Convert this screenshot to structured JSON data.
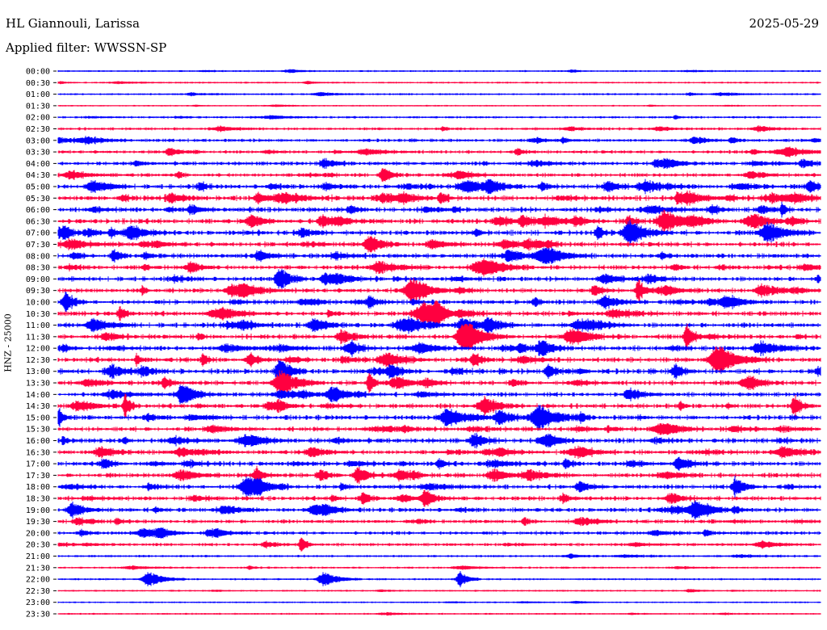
{
  "header": {
    "station": "HL Giannouli, Larissa",
    "date": "2025-05-29",
    "filter": "Applied filter: WWSSN-SP"
  },
  "chart_data": {
    "type": "line",
    "title": "HL Giannouli, Larissa",
    "ylabel": "HNZ - 25000",
    "colors": [
      "#0000ff",
      "#ff0040"
    ],
    "row_labels": [
      "00:00",
      "00:30",
      "01:00",
      "01:30",
      "02:00",
      "02:30",
      "03:00",
      "03:30",
      "04:00",
      "04:30",
      "05:00",
      "05:30",
      "06:00",
      "06:30",
      "07:00",
      "07:30",
      "08:00",
      "08:30",
      "09:00",
      "09:30",
      "10:00",
      "10:30",
      "11:00",
      "11:30",
      "12:00",
      "12:30",
      "13:00",
      "13:30",
      "14:00",
      "14:30",
      "15:00",
      "15:30",
      "16:00",
      "16:30",
      "17:00",
      "17:30",
      "18:00",
      "18:30",
      "19:00",
      "19:30",
      "20:00",
      "20:30",
      "21:00",
      "21:30",
      "22:00",
      "22:30",
      "23:00",
      "23:30"
    ],
    "trace_activity": [
      0.15,
      0.15,
      0.2,
      0.1,
      0.25,
      0.35,
      0.45,
      0.45,
      0.55,
      0.55,
      0.7,
      0.85,
      0.75,
      0.8,
      0.75,
      0.75,
      0.7,
      0.7,
      0.7,
      0.7,
      0.7,
      0.75,
      0.75,
      0.75,
      0.75,
      0.8,
      0.8,
      0.7,
      0.65,
      0.7,
      0.75,
      0.7,
      0.75,
      0.7,
      0.7,
      0.7,
      0.65,
      0.65,
      0.65,
      0.55,
      0.5,
      0.4,
      0.25,
      0.2,
      0.2,
      0.15,
      0.12,
      0.15
    ]
  }
}
